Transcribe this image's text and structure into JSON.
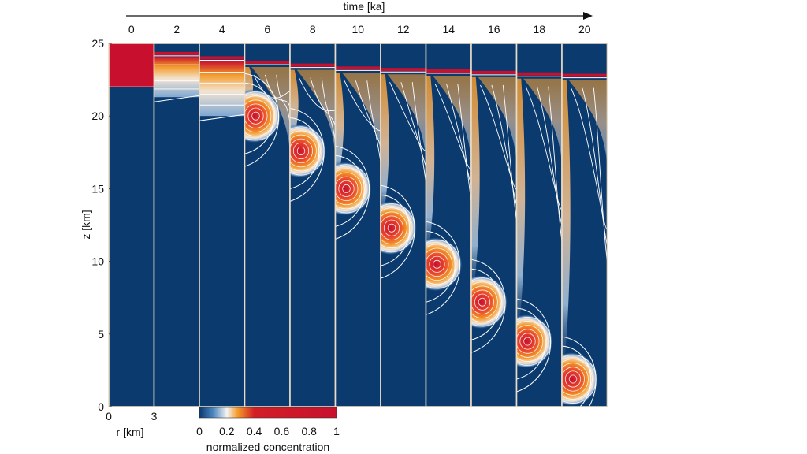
{
  "chart_data": {
    "type": "heatmap",
    "time_axis": {
      "label": "time [ka]",
      "ticks": [
        "0",
        "2",
        "4",
        "6",
        "8",
        "10",
        "12",
        "14",
        "16",
        "18",
        "20"
      ]
    },
    "z_axis": {
      "label": "z [km]",
      "ticks": [
        "0",
        "5",
        "10",
        "15",
        "20",
        "25"
      ],
      "range": [
        0,
        25
      ]
    },
    "r_axis": {
      "label": "r [km]",
      "ticks": [
        "0",
        "3"
      ],
      "range": [
        0,
        3
      ]
    },
    "colorbar": {
      "label": "normalized concentration",
      "ticks": [
        "0",
        "0.2",
        "0.4",
        "0.6",
        "0.8",
        "1"
      ],
      "range": [
        0,
        1
      ],
      "colors": [
        "#0b3a6e",
        "#4c86bf",
        "#f4f4f4",
        "#f39a2a",
        "#d21f26",
        "#c8102e"
      ]
    },
    "panels": [
      {
        "time": 0,
        "blob_z": null,
        "layer_top": 25,
        "layer_bottom": 22.0
      },
      {
        "time": 2,
        "blob_z": null,
        "layer_top": 24.3,
        "layer_bottom": 21.3
      },
      {
        "time": 4,
        "blob_z": 21.0,
        "layer_top": 24.0,
        "layer_bottom": 20.0
      },
      {
        "time": 6,
        "blob_z": 20.0,
        "layer_top": 23.7,
        "layer_bottom": 18.0
      },
      {
        "time": 8,
        "blob_z": 17.6,
        "layer_top": 23.5,
        "layer_bottom": 15.5
      },
      {
        "time": 10,
        "blob_z": 15.0,
        "layer_top": 23.3,
        "layer_bottom": 12.5
      },
      {
        "time": 12,
        "blob_z": 12.3,
        "layer_top": 23.2,
        "layer_bottom": 10.0
      },
      {
        "time": 14,
        "blob_z": 9.8,
        "layer_top": 23.1,
        "layer_bottom": 8.0
      },
      {
        "time": 16,
        "blob_z": 7.2,
        "layer_top": 23.0,
        "layer_bottom": 5.5
      },
      {
        "time": 18,
        "blob_z": 4.5,
        "layer_top": 22.9,
        "layer_bottom": 3.0
      },
      {
        "time": 20,
        "blob_z": 1.9,
        "layer_top": 22.8,
        "layer_bottom": 0.5
      }
    ]
  }
}
